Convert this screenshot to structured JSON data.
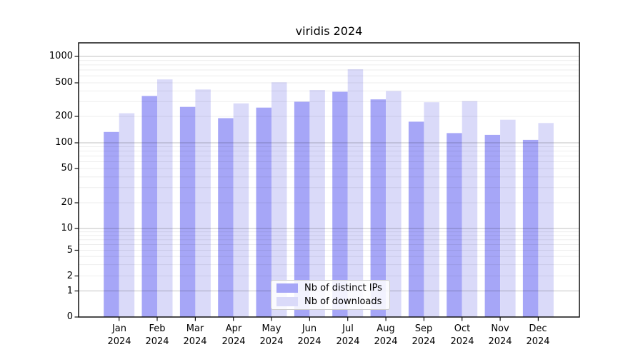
{
  "title": "viridis 2024",
  "background_color": "#ffffff",
  "chart_data": {
    "type": "bar",
    "title": "viridis 2024",
    "categories": [
      "Jan 2024",
      "Feb 2024",
      "Mar 2024",
      "Apr 2024",
      "May 2024",
      "Jun 2024",
      "Jul 2024",
      "Aug 2024",
      "Sep 2024",
      "Oct 2024",
      "Nov 2024",
      "Dec 2024"
    ],
    "x_months": [
      "Jan",
      "Feb",
      "Mar",
      "Apr",
      "May",
      "Jun",
      "Jul",
      "Aug",
      "Sep",
      "Oct",
      "Nov",
      "Dec"
    ],
    "x_year": "2024",
    "series": [
      {
        "name": "Nb of distinct IPs",
        "color": "#a6a6f7",
        "values": [
          133,
          349,
          259,
          191,
          254,
          298,
          392,
          318,
          174,
          129,
          123,
          108
        ]
      },
      {
        "name": "Nb of downloads",
        "color": "#dadaf9",
        "values": [
          218,
          547,
          417,
          285,
          507,
          411,
          714,
          399,
          294,
          303,
          183,
          168
        ]
      }
    ],
    "yscale": "symlog",
    "y_ticks": [
      1000,
      500,
      200,
      100,
      50,
      20,
      10,
      5,
      2,
      1,
      0
    ],
    "ylim": [
      0,
      1400
    ],
    "xlabel": "",
    "ylabel": "",
    "grid": true,
    "legend_position": "lower center",
    "grid_minor_color": "rgba(0,0,0,0.07)",
    "grid_major_color": "rgba(0,0,0,0.24)",
    "axis_color": "#111111"
  }
}
